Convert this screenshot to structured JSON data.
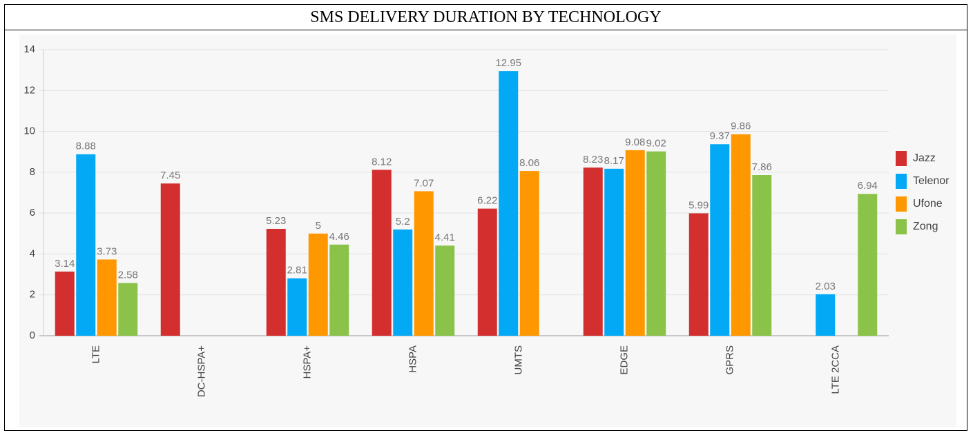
{
  "chart_data": {
    "type": "bar",
    "title": "SMS DELIVERY DURATION BY TECHNOLOGY",
    "categories": [
      "LTE",
      "DC-HSPA+",
      "HSPA+",
      "HSPA",
      "UMTS",
      "EDGE",
      "GPRS",
      "LTE 2CCA"
    ],
    "series": [
      {
        "name": "Jazz",
        "color": "#d32f2f",
        "values": [
          3.14,
          7.45,
          5.23,
          8.12,
          6.22,
          8.23,
          5.99,
          null
        ]
      },
      {
        "name": "Telenor",
        "color": "#03a9f4",
        "values": [
          8.88,
          null,
          2.81,
          5.2,
          12.95,
          8.17,
          9.37,
          2.03
        ]
      },
      {
        "name": "Ufone",
        "color": "#ff9800",
        "values": [
          3.73,
          null,
          5,
          7.07,
          8.06,
          9.08,
          9.86,
          null
        ]
      },
      {
        "name": "Zong",
        "color": "#8bc34a",
        "values": [
          2.58,
          null,
          4.46,
          4.41,
          null,
          9.02,
          7.86,
          6.94
        ]
      }
    ],
    "ylim": [
      0,
      14
    ],
    "yticks": [
      0,
      2,
      4,
      6,
      8,
      10,
      12,
      14
    ],
    "grid": true,
    "legend": "right"
  }
}
